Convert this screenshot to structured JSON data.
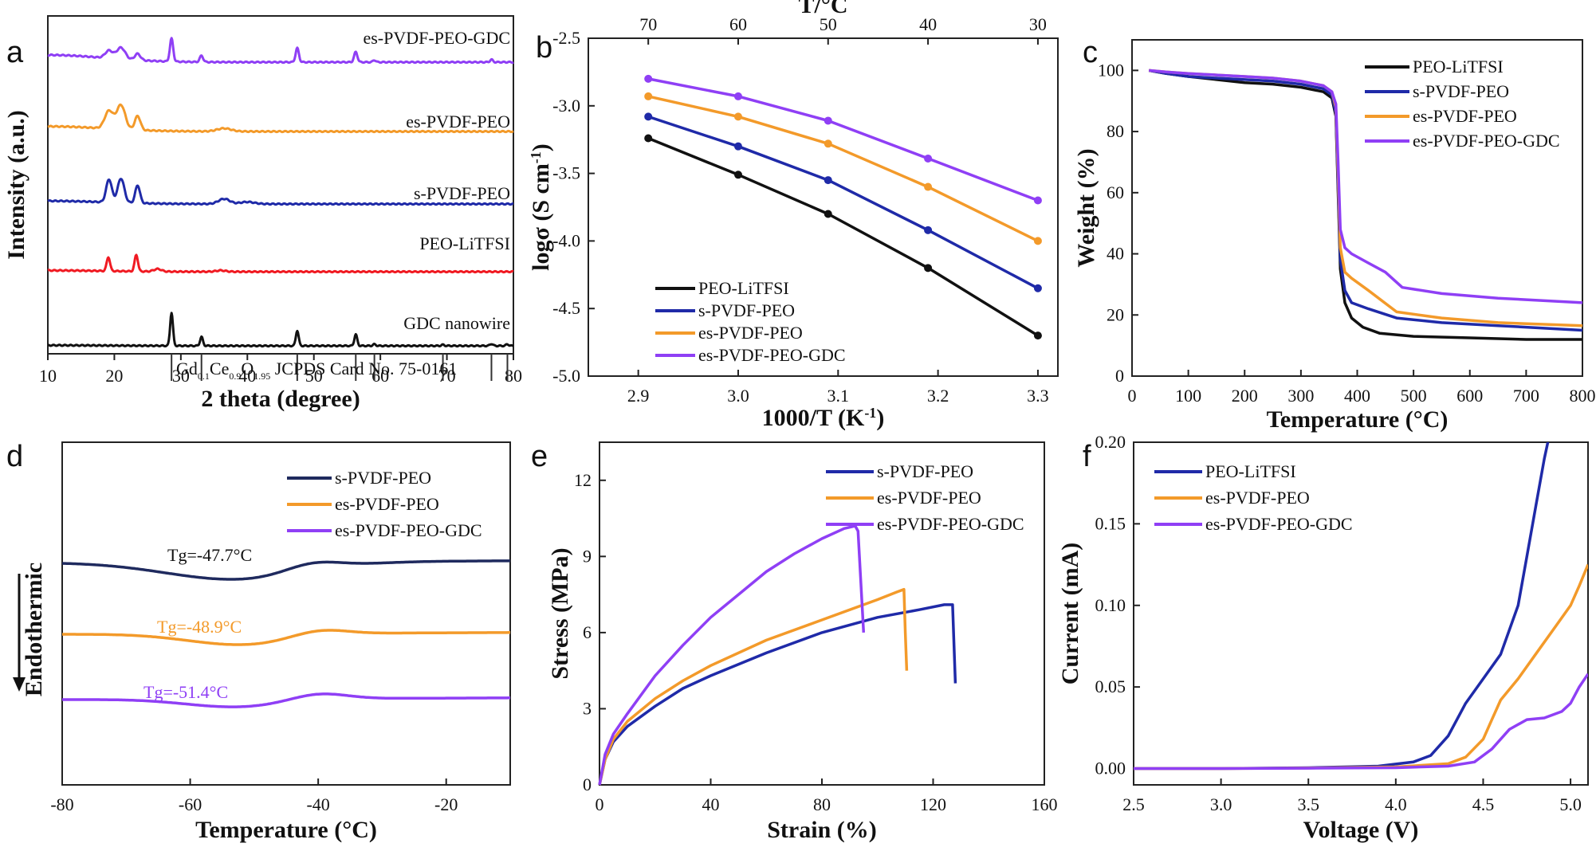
{
  "chart_data": [
    {
      "panel": "a",
      "type": "line",
      "title": "",
      "xlabel": "2 theta (degree)",
      "ylabel": "Intensity (a.u.)",
      "xlim": [
        10,
        80
      ],
      "xticks": [
        10,
        20,
        30,
        40,
        50,
        60,
        70,
        80
      ],
      "series": [
        {
          "name": "es-PVDF-PEO-GDC",
          "label": "es-PVDF-PEO-GDC",
          "color": "#8f3ff5",
          "offset": 4,
          "baseline": 0.28,
          "peaks": [
            [
              19.2,
              0.3,
              0.8
            ],
            [
              21,
              0.45,
              0.9
            ],
            [
              23.5,
              0.25,
              0.6
            ],
            [
              28.6,
              0.9,
              0.35
            ],
            [
              33.1,
              0.25,
              0.35
            ],
            [
              47.5,
              0.55,
              0.35
            ],
            [
              56.3,
              0.4,
              0.35
            ],
            [
              59.1,
              0.08,
              0.3
            ],
            [
              76.7,
              0.1,
              0.3
            ]
          ]
        },
        {
          "name": "es-PVDF-PEO",
          "label": "es-PVDF-PEO",
          "color": "#f39a2a",
          "offset": 3,
          "baseline": 0.2,
          "peaks": [
            [
              19.2,
              0.7,
              0.9
            ],
            [
              21,
              0.95,
              0.9
            ],
            [
              23.5,
              0.55,
              0.6
            ],
            [
              36.5,
              0.12,
              1.5
            ]
          ]
        },
        {
          "name": "s-PVDF-PEO",
          "label": "s-PVDF-PEO",
          "color": "#1f2aa8",
          "offset": 2,
          "baseline": 0.12,
          "peaks": [
            [
              19.2,
              0.9,
              0.6
            ],
            [
              21,
              0.95,
              0.7
            ],
            [
              23.5,
              0.7,
              0.5
            ],
            [
              36.5,
              0.2,
              1.2
            ],
            [
              40,
              0.08,
              1.5
            ]
          ]
        },
        {
          "name": "PEO-LiTFSI",
          "label": "PEO-LiTFSI",
          "color": "#f01a22",
          "offset": 1,
          "baseline": 0.05,
          "peaks": [
            [
              19.1,
              0.55,
              0.35
            ],
            [
              23.3,
              0.65,
              0.35
            ],
            [
              26.5,
              0.1,
              0.8
            ],
            [
              36,
              0.05,
              1
            ]
          ]
        },
        {
          "name": "GDC nanowire",
          "label": "GDC nanowire",
          "color": "#111111",
          "offset": 0,
          "baseline": 0.02,
          "peaks": [
            [
              28.6,
              1.3,
              0.3
            ],
            [
              33.1,
              0.35,
              0.3
            ],
            [
              47.5,
              0.6,
              0.3
            ],
            [
              56.3,
              0.45,
              0.3
            ],
            [
              59.1,
              0.06,
              0.3
            ],
            [
              69.4,
              0.04,
              0.3
            ],
            [
              76.7,
              0.08,
              0.3
            ],
            [
              79.1,
              0.06,
              0.3
            ]
          ]
        }
      ],
      "reference": {
        "label_parts": [
          "Gd",
          "0.1",
          "Ce",
          "0.9",
          "O",
          "1.95",
          " JCPDS Card No. 75-0161"
        ],
        "positions": [
          28.6,
          33.1,
          47.5,
          56.3,
          59.1,
          69.4,
          76.7,
          79.1
        ]
      }
    },
    {
      "panel": "b",
      "type": "line",
      "xlabel": "1000/T (K",
      "xlabel_sup": "-1",
      "xlabel_end": ")",
      "ylabel": "logσ (S cm",
      "ylabel_sup": "-1",
      "ylabel_end": ")",
      "top_label": "T/°C",
      "top_ticks": [
        "70",
        "60",
        "50",
        "40",
        "30"
      ],
      "xlim": [
        2.85,
        3.32
      ],
      "ylim": [
        -5.0,
        -2.5
      ],
      "xticks": [
        "2.9",
        "3.0",
        "3.1",
        "3.2",
        "3.3"
      ],
      "yticks": [
        "-2.5",
        "-3.0",
        "-3.5",
        "-4.0",
        "-4.5",
        "-5.0"
      ],
      "x": [
        2.91,
        3.0,
        3.09,
        3.19,
        3.3
      ],
      "series": [
        {
          "name": "PEO-LiTFSI",
          "color": "#111111",
          "values": [
            -3.24,
            -3.51,
            -3.8,
            -4.2,
            -4.7
          ]
        },
        {
          "name": "s-PVDF-PEO",
          "color": "#1f2aa8",
          "values": [
            -3.08,
            -3.3,
            -3.55,
            -3.92,
            -4.35
          ]
        },
        {
          "name": "es-PVDF-PEO",
          "color": "#f39a2a",
          "values": [
            -2.93,
            -3.08,
            -3.28,
            -3.6,
            -4.0
          ]
        },
        {
          "name": "es-PVDF-PEO-GDC",
          "color": "#8f3ff5",
          "values": [
            -2.8,
            -2.93,
            -3.11,
            -3.39,
            -3.7
          ]
        }
      ],
      "legend": "bottom-left"
    },
    {
      "panel": "c",
      "type": "line",
      "xlabel": "Temperature (°C)",
      "ylabel": "Weight (%)",
      "xlim": [
        0,
        800
      ],
      "ylim": [
        0,
        110
      ],
      "xticks": [
        "0",
        "100",
        "200",
        "300",
        "400",
        "500",
        "600",
        "700",
        "800"
      ],
      "yticks": [
        "0",
        "20",
        "40",
        "60",
        "80",
        "100"
      ],
      "series": [
        {
          "name": "PEO-LiTFSI",
          "color": "#111111",
          "x": [
            30,
            60,
            100,
            150,
            200,
            250,
            300,
            340,
            355,
            362,
            366,
            370,
            378,
            390,
            410,
            440,
            500,
            600,
            700,
            800
          ],
          "values": [
            100,
            99,
            98,
            97,
            96,
            95.5,
            94.5,
            93,
            91,
            85,
            60,
            35,
            24,
            19,
            16,
            14,
            13,
            12.5,
            12,
            12
          ]
        },
        {
          "name": "s-PVDF-PEO",
          "color": "#1f2aa8",
          "x": [
            30,
            60,
            100,
            150,
            200,
            250,
            300,
            340,
            355,
            362,
            366,
            370,
            378,
            390,
            420,
            470,
            550,
            650,
            800
          ],
          "values": [
            100,
            99,
            98,
            97.5,
            97,
            96.5,
            95.5,
            94,
            92,
            86,
            62,
            38,
            28,
            24,
            22,
            19,
            17.5,
            16.5,
            15
          ]
        },
        {
          "name": "es-PVDF-PEO",
          "color": "#f39a2a",
          "x": [
            30,
            60,
            100,
            150,
            200,
            250,
            300,
            340,
            355,
            362,
            366,
            370,
            378,
            390,
            420,
            470,
            550,
            650,
            800
          ],
          "values": [
            100,
            99.5,
            99,
            98.5,
            98,
            97.5,
            96.5,
            95,
            93,
            88,
            66,
            42,
            34,
            32,
            28,
            21,
            19,
            17.5,
            16.5
          ]
        },
        {
          "name": "es-PVDF-PEO-GDC",
          "color": "#8f3ff5",
          "x": [
            30,
            60,
            100,
            150,
            200,
            250,
            300,
            340,
            355,
            362,
            366,
            370,
            378,
            390,
            420,
            450,
            480,
            550,
            650,
            800
          ],
          "values": [
            100,
            99.5,
            99,
            98.5,
            98,
            97.5,
            96.5,
            95,
            93,
            89,
            70,
            48,
            42,
            40,
            37,
            34,
            29,
            27,
            25.5,
            24
          ]
        }
      ],
      "legend": "top-right"
    },
    {
      "panel": "d",
      "type": "line",
      "xlabel": "Temperature (°C)",
      "ylabel": "Endothermic",
      "xlim": [
        -80,
        -10
      ],
      "xticks": [
        "-80",
        "-60",
        "-40",
        "-20"
      ],
      "series": [
        {
          "name": "s-PVDF-PEO",
          "color": "#1f2a5e",
          "level": 2,
          "annotation": "Tg=-47.7°C",
          "ann_color": "#111111"
        },
        {
          "name": "es-PVDF-PEO",
          "color": "#f39a2a",
          "level": 1,
          "annotation": "Tg=-48.9°C",
          "ann_color": "#f39a2a"
        },
        {
          "name": "es-PVDF-PEO-GDC",
          "color": "#8f3ff5",
          "level": 0,
          "annotation": "Tg=-51.4°C",
          "ann_color": "#8f3ff5"
        }
      ],
      "legend": "top-right"
    },
    {
      "panel": "e",
      "type": "line",
      "xlabel": "Strain (%)",
      "ylabel": "Stress (MPa)",
      "xlim": [
        0,
        160
      ],
      "ylim": [
        0,
        13.5
      ],
      "xticks": [
        "0",
        "40",
        "80",
        "120",
        "160"
      ],
      "yticks": [
        "0",
        "3",
        "6",
        "9",
        "12"
      ],
      "series": [
        {
          "name": "s-PVDF-PEO",
          "color": "#1f2aa8",
          "x": [
            0,
            2,
            5,
            10,
            20,
            30,
            40,
            60,
            80,
            100,
            115,
            124,
            127,
            127.5,
            128
          ],
          "values": [
            0,
            1,
            1.7,
            2.3,
            3.1,
            3.8,
            4.3,
            5.2,
            6.0,
            6.6,
            6.9,
            7.1,
            7.1,
            5.5,
            4.0
          ]
        },
        {
          "name": "es-PVDF-PEO",
          "color": "#f39a2a",
          "x": [
            0,
            2,
            5,
            10,
            20,
            30,
            40,
            60,
            80,
            100,
            107,
            109.5,
            110,
            110.5
          ],
          "values": [
            0,
            1,
            1.8,
            2.5,
            3.4,
            4.1,
            4.7,
            5.7,
            6.5,
            7.3,
            7.6,
            7.7,
            6.0,
            4.5
          ]
        },
        {
          "name": "es-PVDF-PEO-GDC",
          "color": "#8f3ff5",
          "x": [
            0,
            2,
            5,
            10,
            20,
            30,
            40,
            50,
            60,
            70,
            80,
            88,
            92,
            93,
            94,
            95
          ],
          "values": [
            0,
            1.2,
            2,
            2.8,
            4.3,
            5.5,
            6.6,
            7.5,
            8.4,
            9.1,
            9.7,
            10.1,
            10.2,
            10.0,
            8.0,
            6.0
          ]
        }
      ],
      "legend": "top-right"
    },
    {
      "panel": "f",
      "type": "line",
      "xlabel": "Voltage (V)",
      "ylabel": "Current (mA)",
      "xlim": [
        2.5,
        5.1
      ],
      "ylim": [
        -0.01,
        0.2
      ],
      "xticks": [
        "2.5",
        "3.0",
        "3.5",
        "4.0",
        "4.5",
        "5.0"
      ],
      "yticks": [
        "0.00",
        "0.05",
        "0.10",
        "0.15",
        "0.20"
      ],
      "series": [
        {
          "name": "PEO-LiTFSI",
          "color": "#1f2aa8",
          "x": [
            2.5,
            3.0,
            3.5,
            3.9,
            4.1,
            4.2,
            4.3,
            4.4,
            4.5,
            4.6,
            4.7,
            4.75,
            4.8,
            4.85,
            4.88
          ],
          "values": [
            0,
            0,
            0.0005,
            0.0015,
            0.004,
            0.008,
            0.02,
            0.04,
            0.055,
            0.07,
            0.1,
            0.13,
            0.16,
            0.19,
            0.205
          ]
        },
        {
          "name": "es-PVDF-PEO",
          "color": "#f39a2a",
          "x": [
            2.5,
            3.0,
            3.5,
            4.0,
            4.3,
            4.4,
            4.5,
            4.55,
            4.6,
            4.7,
            4.8,
            4.9,
            5.0,
            5.05,
            5.1
          ],
          "values": [
            0,
            0,
            0.0003,
            0.001,
            0.003,
            0.007,
            0.018,
            0.03,
            0.042,
            0.055,
            0.07,
            0.085,
            0.1,
            0.112,
            0.125
          ]
        },
        {
          "name": "es-PVDF-PEO-GDC",
          "color": "#8f3ff5",
          "x": [
            2.5,
            3.0,
            3.5,
            4.0,
            4.3,
            4.45,
            4.55,
            4.65,
            4.75,
            4.85,
            4.95,
            5.0,
            5.05,
            5.1
          ],
          "values": [
            0,
            0,
            0.0002,
            0.0005,
            0.0015,
            0.004,
            0.012,
            0.024,
            0.03,
            0.031,
            0.035,
            0.04,
            0.05,
            0.058
          ]
        }
      ],
      "legend": "top-left"
    }
  ]
}
